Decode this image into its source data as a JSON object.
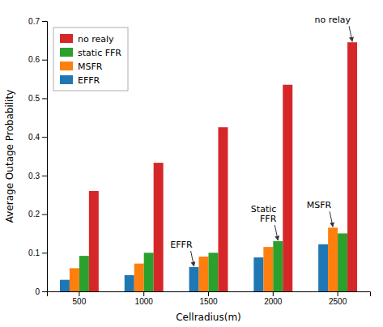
{
  "chart_data": {
    "type": "bar",
    "categories": [
      500,
      1000,
      1500,
      2000,
      2500
    ],
    "series": [
      {
        "name": "EFFR",
        "values": [
          0.03,
          0.042,
          0.063,
          0.088,
          0.122
        ]
      },
      {
        "name": "MSFR",
        "values": [
          0.06,
          0.072,
          0.09,
          0.115,
          0.165
        ]
      },
      {
        "name": "static FFR",
        "values": [
          0.092,
          0.1,
          0.1,
          0.13,
          0.15
        ]
      },
      {
        "name": "no realy",
        "values": [
          0.26,
          0.333,
          0.425,
          0.535,
          0.645
        ]
      }
    ],
    "xlabel": "Cellradius(m)",
    "ylabel": "Average Outage Probability",
    "ylim": [
      0,
      0.7
    ],
    "yticks": [
      0,
      0.1,
      0.2,
      0.3,
      0.4,
      0.5,
      0.6,
      0.7
    ],
    "grid": false,
    "legend": "upper left",
    "annotations": [
      {
        "text": "EFFR",
        "series": "EFFR",
        "x": 1500,
        "y": 0.063
      },
      {
        "text": "Static\nFFR",
        "series": "static FFR",
        "x": 2000,
        "y": 0.13
      },
      {
        "text": "MSFR",
        "series": "MSFR",
        "x": 2500,
        "y": 0.165
      },
      {
        "text": "no relay",
        "series": "no realy",
        "x": 2500,
        "y": 0.645
      }
    ]
  }
}
